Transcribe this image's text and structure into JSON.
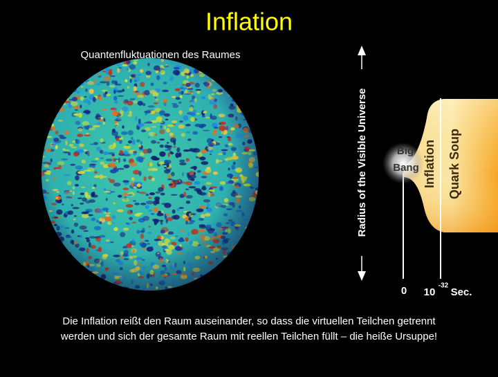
{
  "header": {
    "title": "Inflation",
    "subtitle": "Quantenfluktuationen des Raumes"
  },
  "diagram": {
    "axis_label": "Radius of the Visible Universe",
    "big": "Big",
    "bang": "Bang",
    "inflation": "Inflation",
    "quark_soup": "Quark Soup",
    "time_zero": "0",
    "time_base": "10",
    "time_exponent": "-32",
    "time_unit": "Sec."
  },
  "caption": {
    "lines": [
      "Die Inflation reißt den Raum auseinander, so dass die virtuellen Teilchen getrennt",
      "werden  und sich der gesamte Raum mit reellen Teilchen füllt – die heiße Ursuppe!"
    ]
  }
}
